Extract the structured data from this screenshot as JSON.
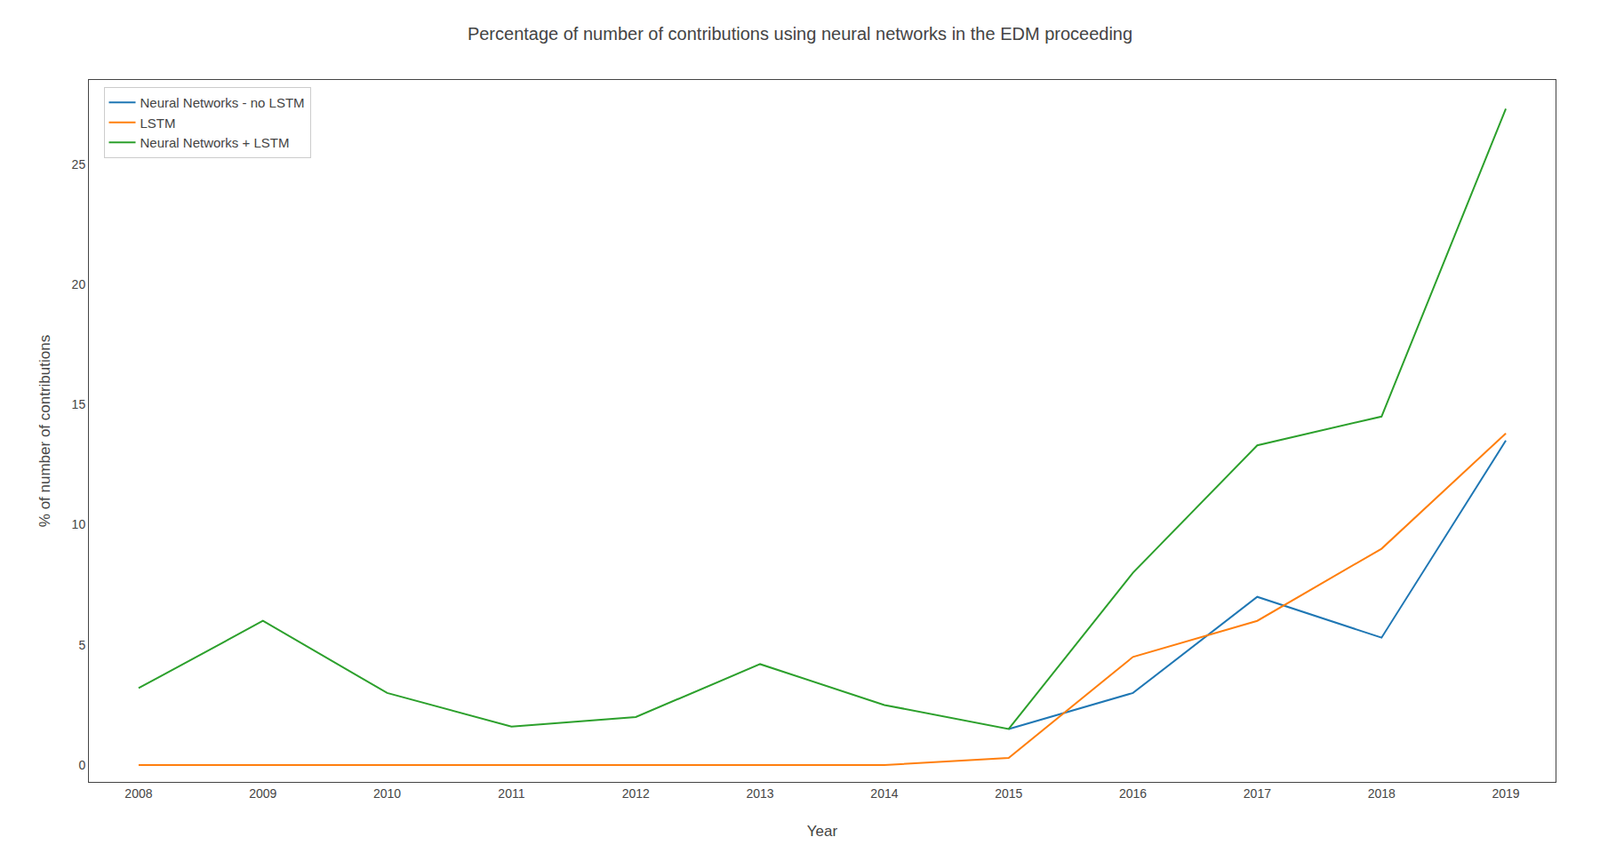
{
  "chart_data": {
    "type": "line",
    "title": "Percentage of number of contributions using neural networks in the EDM proceeding",
    "x_label": "Year",
    "y_label": "% of number of contributions",
    "series": [
      {
        "name": "Neural Networks - no LSTM",
        "color": "#1f77b4",
        "x": [
          2015,
          2016,
          2017,
          2018,
          2019
        ],
        "values": [
          1.5,
          3.0,
          7.0,
          5.3,
          13.5
        ]
      },
      {
        "name": "LSTM",
        "color": "#ff7f0e",
        "x": [
          2008,
          2009,
          2010,
          2011,
          2012,
          2013,
          2014,
          2015,
          2016,
          2017,
          2018,
          2019
        ],
        "values": [
          0.0,
          0.0,
          0.0,
          0.0,
          0.0,
          0.0,
          0.0,
          0.3,
          4.5,
          6.0,
          9.0,
          13.8
        ]
      },
      {
        "name": "Neural Networks + LSTM",
        "color": "#2ca02c",
        "x": [
          2008,
          2009,
          2010,
          2011,
          2012,
          2013,
          2014,
          2015,
          2016,
          2017,
          2018,
          2019
        ],
        "values": [
          3.2,
          6.0,
          3.0,
          1.6,
          2.0,
          4.2,
          2.5,
          1.5,
          8.0,
          13.3,
          14.5,
          27.3
        ]
      }
    ],
    "xlim": [
      2007.6,
      2019.4
    ],
    "ylim": [
      -0.7,
      28.5
    ],
    "xticks": [
      2008,
      2009,
      2010,
      2011,
      2012,
      2013,
      2014,
      2015,
      2016,
      2017,
      2018,
      2019
    ],
    "yticks": [
      0,
      5,
      10,
      15,
      20,
      25
    ],
    "legend": "upper left",
    "grid": false
  }
}
